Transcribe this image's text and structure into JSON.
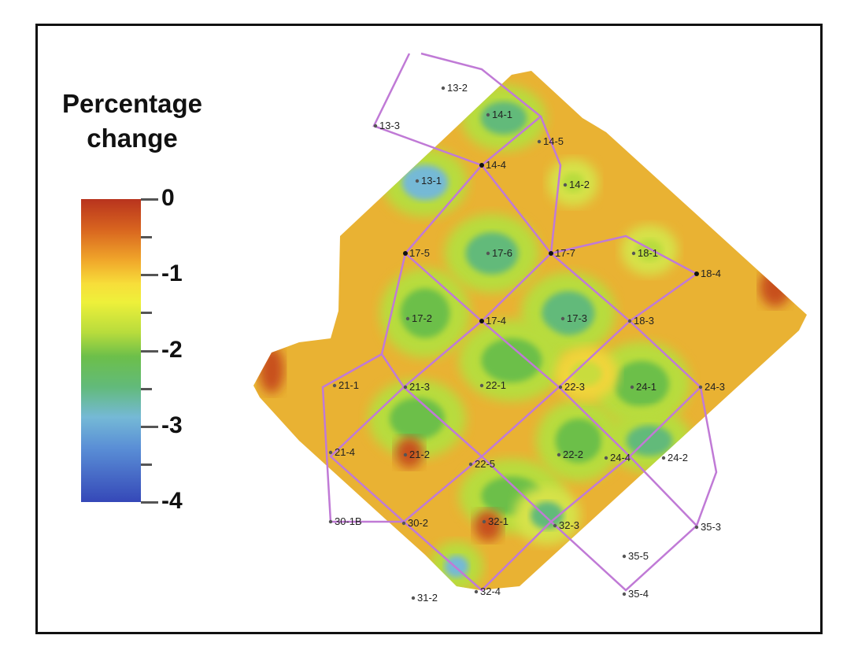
{
  "legend": {
    "title_line1": "Percentage",
    "title_line2": "change",
    "ticks": [
      "0",
      "-1",
      "-2",
      "-3",
      "-4"
    ]
  },
  "colors": {
    "base": "#e9b233",
    "low_change": "#b8331e",
    "mid_change": "#f7de3a",
    "high_change_green": "#6cbf4a",
    "high_change_blue": "#75b9d6",
    "extreme": "#3548b8",
    "pattern_lines": "#c07ad6"
  },
  "wells": [
    {
      "id": "13-2"
    },
    {
      "id": "13-3"
    },
    {
      "id": "14-1"
    },
    {
      "id": "14-5"
    },
    {
      "id": "14-4"
    },
    {
      "id": "13-1"
    },
    {
      "id": "14-2"
    },
    {
      "id": "17-5"
    },
    {
      "id": "17-6"
    },
    {
      "id": "17-7"
    },
    {
      "id": "18-1"
    },
    {
      "id": "18-4"
    },
    {
      "id": "17-2"
    },
    {
      "id": "17-4"
    },
    {
      "id": "17-3"
    },
    {
      "id": "18-3"
    },
    {
      "id": "21-1"
    },
    {
      "id": "21-3"
    },
    {
      "id": "22-1"
    },
    {
      "id": "22-3"
    },
    {
      "id": "24-1"
    },
    {
      "id": "24-3"
    },
    {
      "id": "21-4"
    },
    {
      "id": "21-2"
    },
    {
      "id": "22-5"
    },
    {
      "id": "22-2"
    },
    {
      "id": "24-4"
    },
    {
      "id": "24-2"
    },
    {
      "id": "30-1B"
    },
    {
      "id": "30-2"
    },
    {
      "id": "32-1"
    },
    {
      "id": "32-3"
    },
    {
      "id": "35-3"
    },
    {
      "id": "35-5"
    },
    {
      "id": "31-2"
    },
    {
      "id": "32-4"
    },
    {
      "id": "35-4"
    }
  ]
}
